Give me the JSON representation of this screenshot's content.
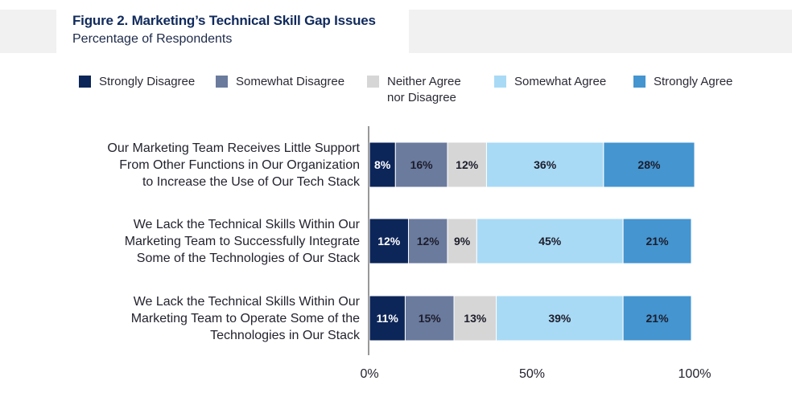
{
  "header": {
    "title": "Figure 2. Marketing’s Technical Skill Gap Issues",
    "subtitle": "Percentage of Respondents"
  },
  "colors": {
    "strongly_disagree": "#0d2659",
    "somewhat_disagree": "#6b7b9e",
    "neither": "#d6d6d6",
    "somewhat_agree": "#a8daf5",
    "strongly_agree": "#4495d0",
    "axis": "#555555"
  },
  "chart_data": {
    "type": "bar",
    "orientation": "horizontal",
    "stacked": true,
    "categories": [
      "Our Marketing Team Receives Little Support\nFrom Other Functions in Our Organization\nto Increase the Use of Our Tech Stack",
      "We Lack the Technical Skills Within Our\nMarketing Team to Successfully Integrate\nSome of the Technologies of Our Stack",
      "We Lack the Technical Skills Within Our\nMarketing Team to Operate Some of the\nTechnologies in Our Stack"
    ],
    "series": [
      {
        "name": "Strongly Disagree",
        "color": "#0d2659",
        "label_color": "#ffffff",
        "values": [
          8,
          12,
          11
        ]
      },
      {
        "name": "Somewhat Disagree",
        "color": "#6b7b9e",
        "label_color": "#1d1d2b",
        "values": [
          16,
          12,
          15
        ]
      },
      {
        "name": "Neither Agree\nnor Disagree",
        "color": "#d6d6d6",
        "label_color": "#1d1d2b",
        "values": [
          12,
          9,
          13
        ]
      },
      {
        "name": "Somewhat Agree",
        "color": "#a8daf5",
        "label_color": "#1d1d2b",
        "values": [
          36,
          45,
          39
        ]
      },
      {
        "name": "Strongly Agree",
        "color": "#4495d0",
        "label_color": "#1d1d2b",
        "values": [
          28,
          21,
          21
        ]
      }
    ],
    "value_suffix": "%",
    "xlim": [
      0,
      100
    ],
    "xticks": [
      "0%",
      "50%",
      "100%"
    ],
    "legend_position": "top",
    "grid": false
  }
}
